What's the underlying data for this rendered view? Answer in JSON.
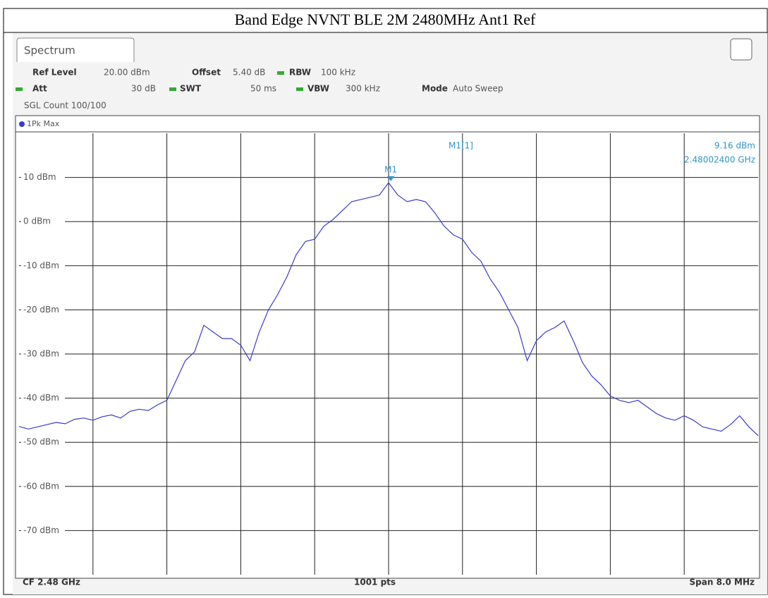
{
  "page_title": "Band Edge NVNT BLE 2M 2480MHz Ant1 Ref",
  "header": {
    "tab": "Spectrum",
    "ref_level_label": "Ref Level",
    "ref_level": "20.00 dBm",
    "offset_label": "Offset",
    "offset": "5.40 dB",
    "rbw_label": "RBW",
    "rbw": "100 kHz",
    "att_label": "Att",
    "att": "30 dB",
    "swt_label": "SWT",
    "swt": "50 ms",
    "vbw_label": "VBW",
    "vbw": "300 kHz",
    "mode_label": "Mode",
    "mode": "Auto Sweep",
    "count": "SGL Count 100/100"
  },
  "footer": {
    "cf": "CF 2.48 GHz",
    "pts": "1001 pts",
    "span": "Span 8.0 MHz"
  },
  "chart_data": {
    "type": "line",
    "x": [
      2.476,
      2.4761,
      2.4762,
      2.4763,
      2.4764,
      2.4765,
      2.4766,
      2.4767,
      2.4768,
      2.4769,
      2.477,
      2.4771,
      2.4772,
      2.4773,
      2.4774,
      2.4775,
      2.4776,
      2.4777,
      2.4778,
      2.4779,
      2.478,
      2.4781,
      2.4782,
      2.4783,
      2.4784,
      2.4785,
      2.4786,
      2.4787,
      2.4788,
      2.4789,
      2.479,
      2.4791,
      2.4792,
      2.4793,
      2.4794,
      2.4795,
      2.4796,
      2.4797,
      2.4798,
      2.4799,
      2.48,
      2.4801,
      2.4802,
      2.4803,
      2.4804,
      2.4805,
      2.4806,
      2.4807,
      2.4808,
      2.4809,
      2.481,
      2.4811,
      2.4812,
      2.4813,
      2.4814,
      2.4815,
      2.4816,
      2.4817,
      2.4818,
      2.4819,
      2.482,
      2.4821,
      2.4822,
      2.4823,
      2.4824,
      2.4825,
      2.4826,
      2.4827,
      2.4828,
      2.4829,
      2.483,
      2.4831,
      2.4832,
      2.4833,
      2.4834,
      2.4835,
      2.4836,
      2.4837,
      2.4838,
      2.4839,
      2.484
    ],
    "series": [
      {
        "name": "1Pk Max",
        "color": "#3a3ad0",
        "values": [
          -46.4,
          -47,
          -46.5,
          -46,
          -45.5,
          -45.8,
          -44.8,
          -44.5,
          -45,
          -44.2,
          -43.8,
          -44.5,
          -43,
          -42.5,
          -42.8,
          -41.5,
          -40.5,
          -36,
          -31.5,
          -29.5,
          -23.5,
          -25,
          -26.5,
          -26.5,
          -28,
          -31.5,
          -25,
          -20,
          -16.5,
          -12.5,
          -7.5,
          -4.5,
          -4,
          -1,
          0.5,
          2.5,
          4.5,
          5,
          5.5,
          6,
          8.8,
          6,
          4.5,
          5,
          4.5,
          2,
          -1,
          -3,
          -4,
          -7,
          -9,
          -13,
          -16,
          -20,
          -24,
          -31.5,
          -27,
          -25,
          -24,
          -22.5,
          -27,
          -32,
          -35,
          -37,
          -39.5,
          -40.5,
          -41,
          -40.5,
          -42,
          -43.5,
          -44.5,
          -45,
          -44,
          -45,
          -46.5,
          -47,
          -47.5,
          -46,
          -44,
          -46.5,
          -48.5
        ]
      }
    ],
    "xlim": [
      2.476,
      2.484
    ],
    "xticks": [
      2.476,
      2.4768,
      2.4776,
      2.4784,
      2.4792,
      2.48,
      2.4808,
      2.4816,
      2.4824,
      2.4832,
      2.484
    ],
    "ylim": [
      -80,
      20
    ],
    "yticks": [
      {
        "value": 10,
        "label": "10 dBm"
      },
      {
        "value": 0,
        "label": "0 dBm"
      },
      {
        "value": -10,
        "label": "-10 dBm"
      },
      {
        "value": -20,
        "label": "-20 dBm"
      },
      {
        "value": -30,
        "label": "-30 dBm"
      },
      {
        "value": -40,
        "label": "-40 dBm"
      },
      {
        "value": -50,
        "label": "-50 dBm"
      },
      {
        "value": -60,
        "label": "-60 dBm"
      },
      {
        "value": -70,
        "label": "-70 dBm"
      }
    ],
    "grid": true,
    "marker": {
      "label": "M1",
      "readout": "M1[1]",
      "x": 2.480024,
      "y": 9.16,
      "value_label": "9.16 dBm",
      "x_label": "2.48002400 GHz",
      "color": "#2f95c8"
    }
  }
}
